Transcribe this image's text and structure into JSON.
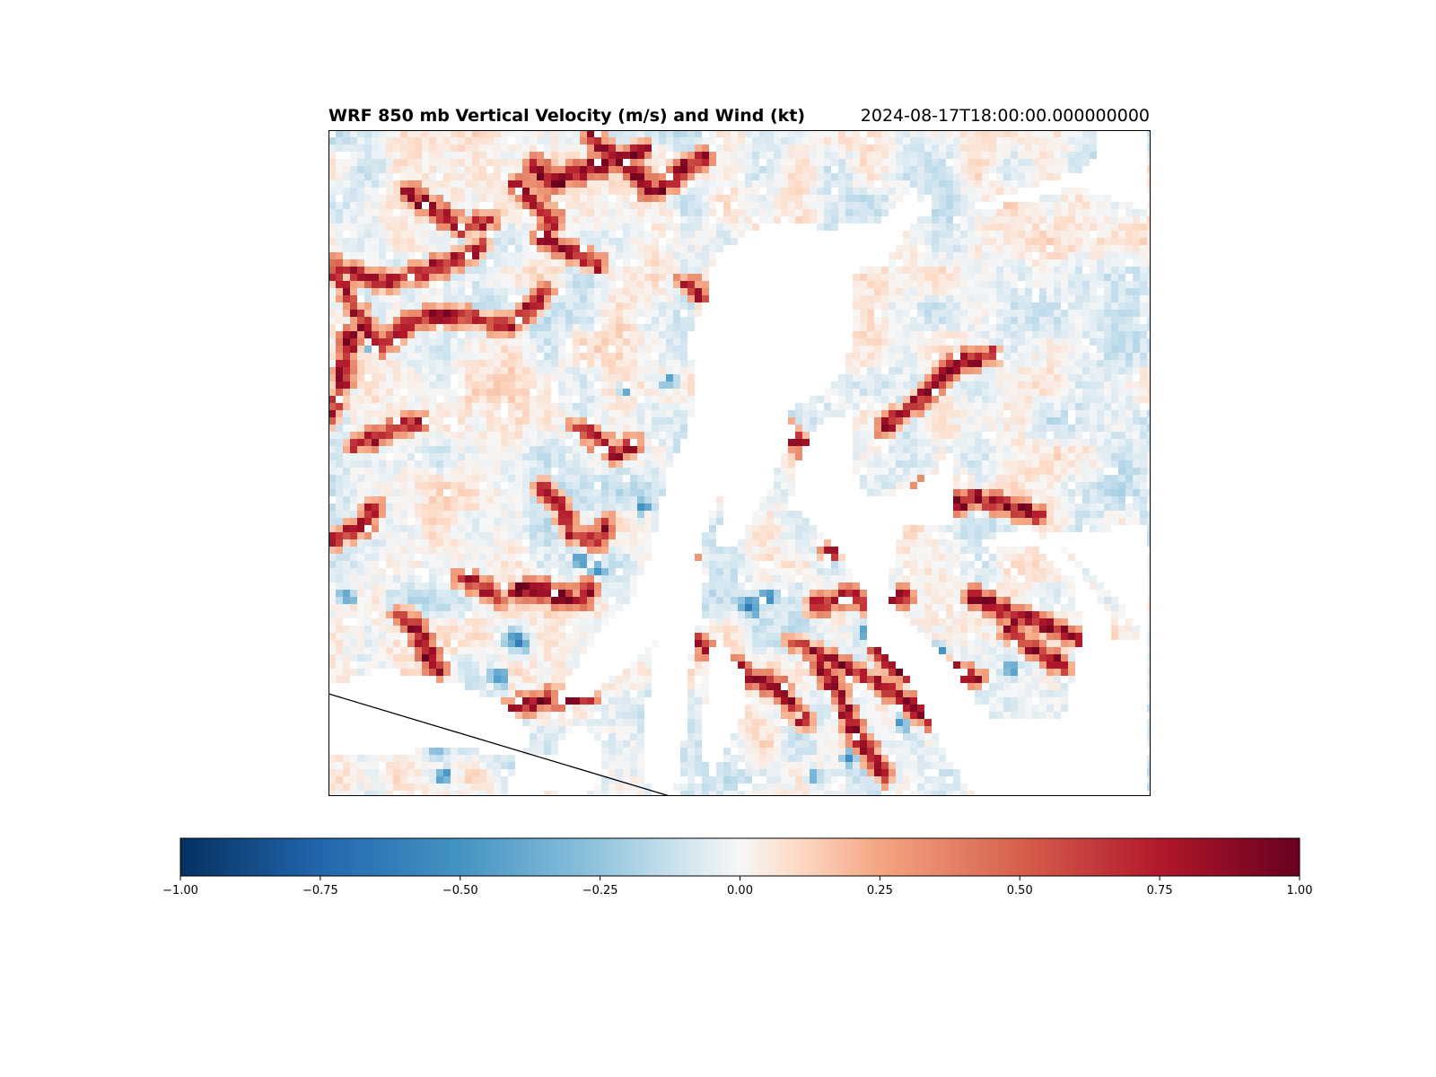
{
  "title_left": "WRF 850 mb Vertical Velocity (m/s) and Wind (kt)",
  "title_right": "2024-08-17T18:00:00.000000000",
  "chart_data": {
    "type": "heatmap",
    "title": "WRF 850 mb Vertical Velocity (m/s) and Wind (kt)",
    "valid_time": "2024-08-17T18:00:00.000000000",
    "variable": "850 mb vertical velocity",
    "units": "m/s",
    "colormap": "RdBu_r",
    "value_range": [
      -1.0,
      1.0
    ],
    "colorbar": {
      "orientation": "horizontal",
      "location": "bottom",
      "ticks": [
        -1.0,
        -0.75,
        -0.5,
        -0.25,
        0.0,
        0.25,
        0.5,
        0.75,
        1.0
      ],
      "tick_labels": [
        "−1.00",
        "−0.75",
        "−0.50",
        "−0.25",
        "0.00",
        "0.25",
        "0.50",
        "0.75",
        "1.00"
      ]
    },
    "colors": {
      "min": "#053061",
      "neg_mid": "#2166ac",
      "neg_light": "#92c5de",
      "zero": "#f7f7f7",
      "pos_light": "#f4a582",
      "pos_mid": "#b2182b",
      "max": "#67001f"
    },
    "field_description": "Masked gridded field: mostly near-zero values with thin positive (red) ridges and some negative (blue) patches; large masked (white) areas in the east and south-west; a straight black boundary line in the lower-left corner.",
    "grid_on": false
  }
}
